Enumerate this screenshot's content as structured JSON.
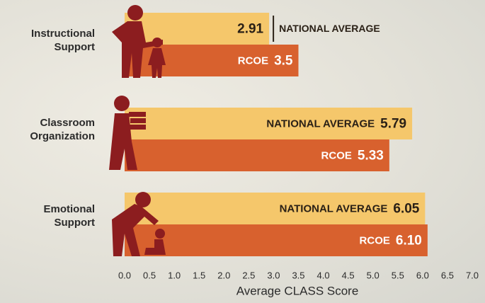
{
  "chart_data": {
    "type": "bar",
    "orientation": "horizontal",
    "categories": [
      "Instructional Support",
      "Classroom Organization",
      "Emotional Support"
    ],
    "series": [
      {
        "name": "NATIONAL AVERAGE",
        "color": "#f5c76b",
        "values": [
          2.91,
          5.79,
          6.05
        ]
      },
      {
        "name": "RCOE",
        "color": "#d8612e",
        "values": [
          3.5,
          5.33,
          6.1
        ],
        "value_labels": [
          "3.5",
          "5.33",
          "6.10"
        ]
      }
    ],
    "x_label": "Average CLASS Score",
    "xlim": [
      0,
      7
    ],
    "xticks": [
      {
        "value": 0,
        "label": "0.0"
      },
      {
        "value": 0.5,
        "label": "0.5"
      },
      {
        "value": 1,
        "label": "1.0"
      },
      {
        "value": 1.5,
        "label": "1.5"
      },
      {
        "value": 2,
        "label": "2.0"
      },
      {
        "value": 2.5,
        "label": "2.5"
      },
      {
        "value": 3,
        "label": "3.0"
      },
      {
        "value": 3.5,
        "label": "3.5"
      },
      {
        "value": 4,
        "label": "4.0"
      },
      {
        "value": 4.5,
        "label": "4.5"
      },
      {
        "value": 5,
        "label": "5.0"
      },
      {
        "value": 5.5,
        "label": "5.5"
      },
      {
        "value": 6,
        "label": "6.0"
      },
      {
        "value": 6.5,
        "label": "6.5"
      },
      {
        "value": 7,
        "label": "7.0"
      }
    ],
    "grid": false
  }
}
